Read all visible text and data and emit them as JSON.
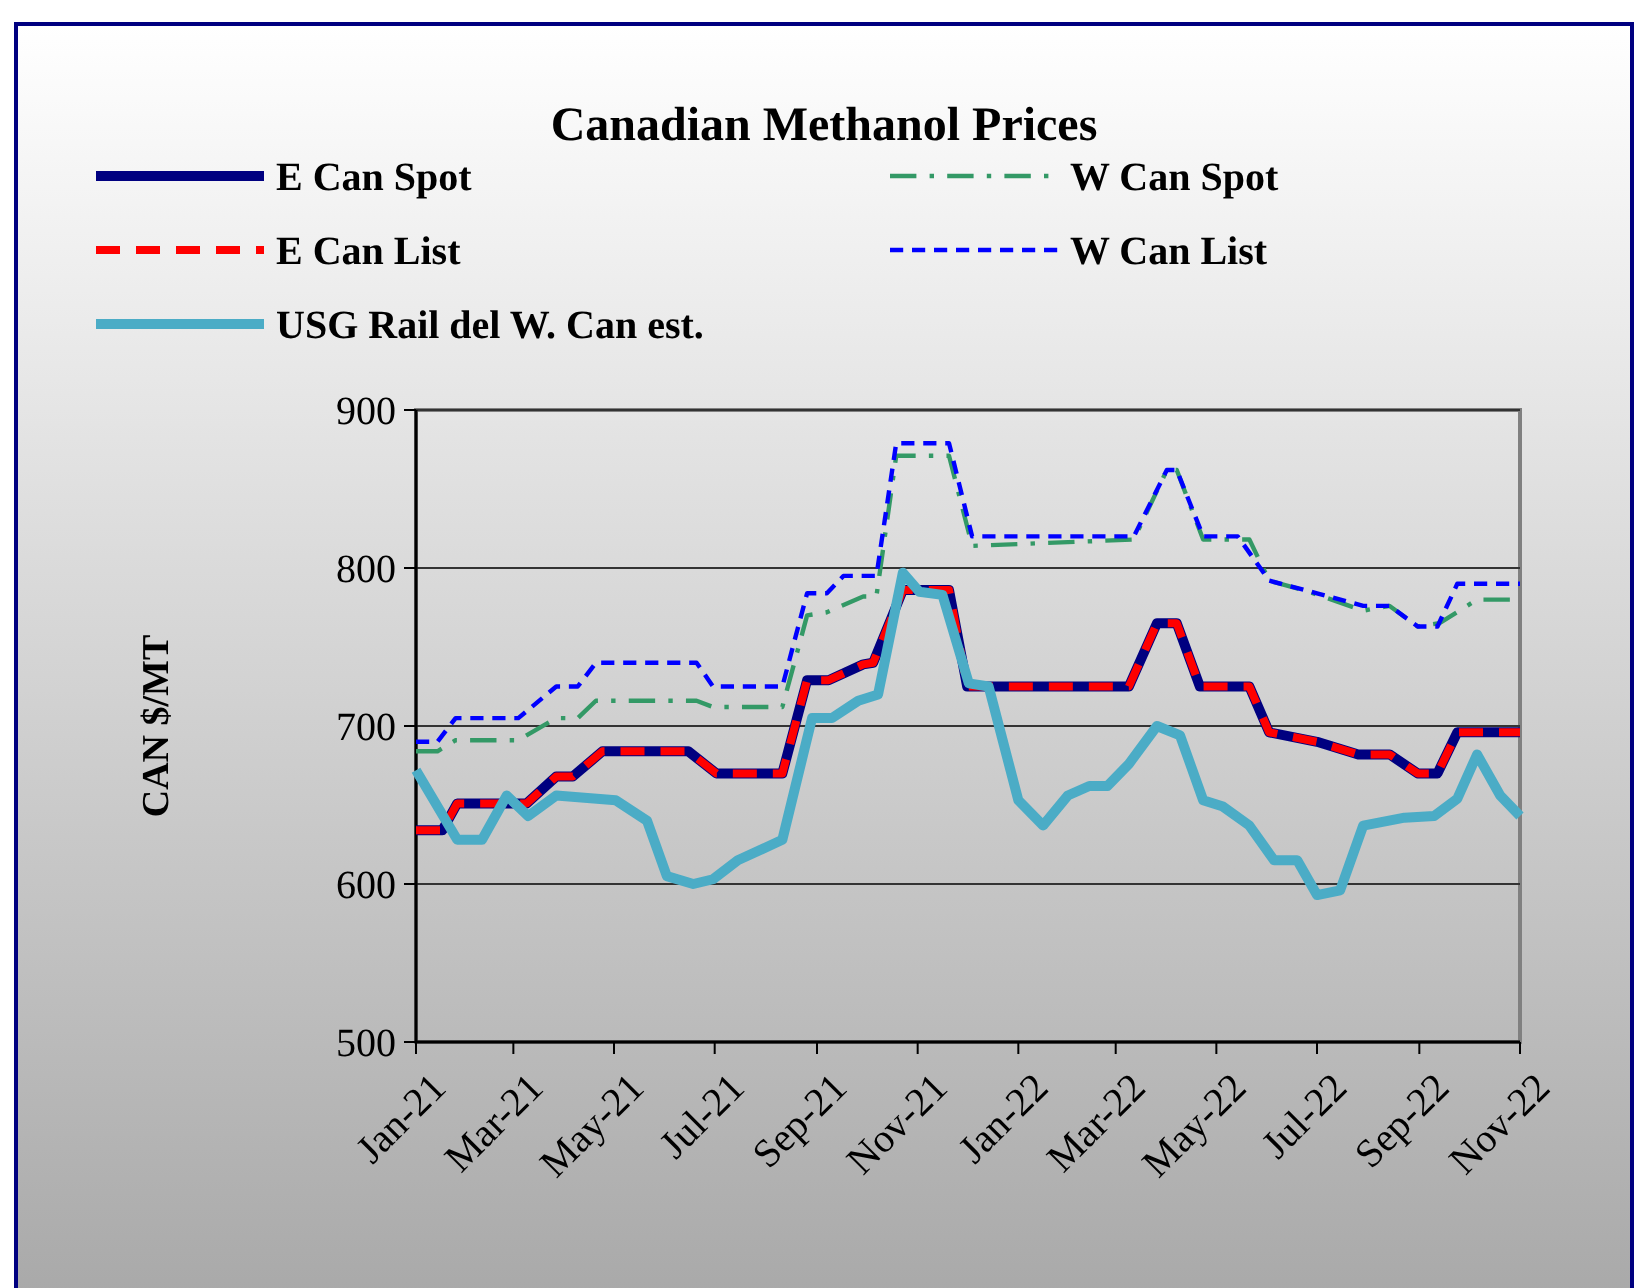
{
  "chart_data": {
    "type": "line",
    "title": "Canadian  Methanol  Prices",
    "ylabel": "CAN $/MT",
    "xlim": [
      "2021-01-01",
      "2022-11-01"
    ],
    "xticks": [
      {
        "value": "2021-01-01",
        "label": "Jan-21"
      },
      {
        "value": "2021-03-01",
        "label": "Mar-21"
      },
      {
        "value": "2021-05-01",
        "label": "May-21"
      },
      {
        "value": "2021-07-01",
        "label": "Jul-21"
      },
      {
        "value": "2021-09-01",
        "label": "Sep-21"
      },
      {
        "value": "2021-11-01",
        "label": "Nov-21"
      },
      {
        "value": "2022-01-01",
        "label": "Jan-22"
      },
      {
        "value": "2022-03-01",
        "label": "Mar-22"
      },
      {
        "value": "2022-05-01",
        "label": "May-22"
      },
      {
        "value": "2022-07-01",
        "label": "Jul-22"
      },
      {
        "value": "2022-09-01",
        "label": "Sep-22"
      },
      {
        "value": "2022-11-01",
        "label": "Nov-22"
      }
    ],
    "ylim": [
      500,
      900
    ],
    "yticks": [
      500,
      600,
      700,
      800,
      900
    ],
    "grid": "y",
    "legend": "top",
    "marker": "none",
    "series": [
      {
        "name": "E Can Spot",
        "color": "#000080",
        "line_style": "solid",
        "x": [
          "2021-01-01",
          "2021-01-17",
          "2021-01-26",
          "2021-03-09",
          "2021-03-27",
          "2021-04-06",
          "2021-04-24",
          "2021-06-15",
          "2021-07-02",
          "2021-08-11",
          "2021-08-26",
          "2021-09-08",
          "2021-09-29",
          "2021-10-05",
          "2021-10-23",
          "2021-11-20",
          "2021-12-01",
          "2022-03-09",
          "2022-03-26",
          "2022-04-07",
          "2022-04-21",
          "2022-05-21",
          "2022-06-02",
          "2022-07-01",
          "2022-07-26",
          "2022-08-14",
          "2022-08-31",
          "2022-09-12",
          "2022-09-24",
          "2022-11-01"
        ],
        "values": [
          634,
          634,
          651,
          651,
          668,
          668,
          684,
          684,
          670,
          670,
          729,
          729,
          739,
          740,
          786,
          786,
          725,
          725,
          765,
          765,
          725,
          725,
          696,
          690,
          682,
          682,
          670,
          670,
          696,
          696
        ]
      },
      {
        "name": "W Can Spot",
        "color": "#339966",
        "line_style": "dashdot",
        "x": [
          "2021-01-01",
          "2021-01-14",
          "2021-01-25",
          "2021-03-04",
          "2021-03-27",
          "2021-04-09",
          "2021-04-20",
          "2021-06-20",
          "2021-06-30",
          "2021-08-11",
          "2021-08-26",
          "2021-09-07",
          "2021-09-29",
          "2021-10-07",
          "2021-10-19",
          "2021-11-20",
          "2021-12-04",
          "2022-03-12",
          "2022-04-01",
          "2022-04-07",
          "2022-04-23",
          "2022-05-21",
          "2022-06-02",
          "2022-06-26",
          "2022-07-29",
          "2022-08-14",
          "2022-08-31",
          "2022-09-13",
          "2022-10-06",
          "2022-11-01"
        ],
        "values": [
          684,
          684,
          691,
          691,
          705,
          705,
          716,
          716,
          712,
          712,
          770,
          772,
          782,
          782,
          871,
          871,
          814,
          818,
          862,
          862,
          818,
          818,
          792,
          785,
          773,
          776,
          763,
          765,
          780,
          780
        ]
      },
      {
        "name": "E Can List",
        "color": "#ff0000",
        "line_style": "dashed",
        "x": [
          "2021-01-01",
          "2021-01-17",
          "2021-01-26",
          "2021-03-09",
          "2021-03-27",
          "2021-04-06",
          "2021-04-24",
          "2021-06-15",
          "2021-07-02",
          "2021-08-11",
          "2021-08-26",
          "2021-09-08",
          "2021-09-29",
          "2021-10-05",
          "2021-10-23",
          "2021-11-20",
          "2021-12-01",
          "2022-03-09",
          "2022-03-26",
          "2022-04-07",
          "2022-04-21",
          "2022-05-21",
          "2022-06-02",
          "2022-07-01",
          "2022-07-26",
          "2022-08-14",
          "2022-08-31",
          "2022-09-12",
          "2022-09-24",
          "2022-11-01"
        ],
        "values": [
          634,
          634,
          651,
          651,
          668,
          668,
          684,
          684,
          670,
          670,
          729,
          729,
          739,
          740,
          786,
          786,
          725,
          725,
          765,
          765,
          725,
          725,
          696,
          690,
          682,
          682,
          670,
          670,
          696,
          696
        ]
      },
      {
        "name": "W Can List",
        "color": "#0000ff",
        "line_style": "dashed",
        "x": [
          "2021-01-01",
          "2021-01-14",
          "2021-01-25",
          "2021-03-04",
          "2021-03-27",
          "2021-04-09",
          "2021-04-20",
          "2021-06-20",
          "2021-06-30",
          "2021-08-11",
          "2021-08-26",
          "2021-09-07",
          "2021-09-17",
          "2021-10-07",
          "2021-10-19",
          "2021-11-20",
          "2021-12-04",
          "2022-03-12",
          "2022-04-01",
          "2022-04-07",
          "2022-04-23",
          "2022-05-14",
          "2022-06-02",
          "2022-07-01",
          "2022-07-29",
          "2022-08-14",
          "2022-08-31",
          "2022-09-12",
          "2022-09-24",
          "2022-11-01"
        ],
        "values": [
          690,
          690,
          705,
          705,
          725,
          725,
          740,
          740,
          725,
          725,
          784,
          784,
          795,
          795,
          879,
          879,
          820,
          820,
          862,
          862,
          820,
          820,
          792,
          784,
          776,
          776,
          763,
          763,
          790,
          790
        ]
      },
      {
        "name": "USG Rail del W. Can est.",
        "color": "#4bacc6",
        "line_style": "solid",
        "x": [
          "2021-01-01",
          "2021-01-26",
          "2021-02-10",
          "2021-02-25",
          "2021-03-10",
          "2021-03-27",
          "2021-05-02",
          "2021-05-21",
          "2021-06-02",
          "2021-06-18",
          "2021-06-30",
          "2021-07-15",
          "2021-08-11",
          "2021-08-29",
          "2021-09-10",
          "2021-09-26",
          "2021-10-08",
          "2021-10-23",
          "2021-11-02",
          "2021-11-16",
          "2021-12-02",
          "2021-12-14",
          "2022-01-01",
          "2022-01-16",
          "2022-01-31",
          "2022-02-13",
          "2022-02-24",
          "2022-03-09",
          "2022-03-26",
          "2022-04-09",
          "2022-04-23",
          "2022-05-05",
          "2022-05-21",
          "2022-06-05",
          "2022-06-19",
          "2022-07-01",
          "2022-07-15",
          "2022-07-29",
          "2022-08-23",
          "2022-09-10",
          "2022-09-24",
          "2022-10-06",
          "2022-10-20",
          "2022-11-01"
        ],
        "values": [
          672,
          628,
          628,
          656,
          643,
          656,
          653,
          640,
          605,
          600,
          603,
          615,
          628,
          705,
          705,
          716,
          720,
          797,
          785,
          783,
          727,
          725,
          653,
          637,
          656,
          662,
          662,
          676,
          700,
          694,
          653,
          649,
          637,
          615,
          615,
          593,
          596,
          637,
          642,
          643,
          654,
          682,
          656,
          643
        ]
      }
    ]
  }
}
